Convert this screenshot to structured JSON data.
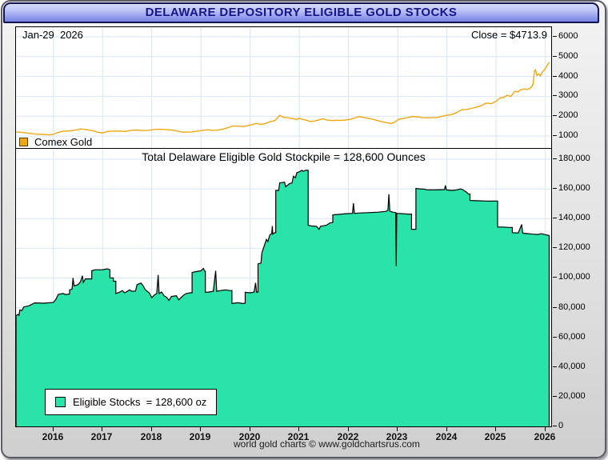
{
  "window": {
    "title": "DELAWARE DEPOSITORY ELIGIBLE GOLD STOCKS"
  },
  "top_chart": {
    "date_label": "Jan-29  2026",
    "close_label": "Close = $4713.9",
    "legend_label": "Comex Gold",
    "line_color": "#F2A712"
  },
  "bottom_chart": {
    "title": "Total Delaware Eligible Gold Stockpile = 128,600 Ounces",
    "legend_label": "Eligible Stocks  = 128,600 oz",
    "fill_color": "#2AE3A8"
  },
  "footer": {
    "credit": "world gold charts © www.goldchartsrus.com"
  },
  "chart_data": [
    {
      "type": "line",
      "name": "Comex Gold",
      "color": "#F2A712",
      "grid_color": "#d7e6f5",
      "xlim": [
        2015.24,
        2026.12
      ],
      "ylim": [
        400,
        6480
      ],
      "yticks": {
        "values": [
          1000,
          2000,
          3000,
          4000,
          5000,
          6000
        ],
        "labels": [
          "1000",
          "2000",
          "3000",
          "4000",
          "5000",
          "6000"
        ]
      },
      "xticks": {
        "values": [
          2016,
          2017,
          2018,
          2019,
          2020,
          2021,
          2022,
          2023,
          2024,
          2025,
          2026
        ],
        "labels": [
          "2016",
          "2017",
          "2018",
          "2019",
          "2020",
          "2021",
          "2022",
          "2023",
          "2024",
          "2025",
          "2026"
        ]
      },
      "annotations": {
        "date": "Jan-29  2026",
        "close": "Close = $4713.9"
      },
      "points": [
        [
          2015.24,
          1210
        ],
        [
          2015.35,
          1190
        ],
        [
          2015.5,
          1140
        ],
        [
          2015.65,
          1095
        ],
        [
          2015.8,
          1085
        ],
        [
          2015.92,
          1062
        ],
        [
          2016.0,
          1090
        ],
        [
          2016.1,
          1190
        ],
        [
          2016.2,
          1242
        ],
        [
          2016.35,
          1262
        ],
        [
          2016.5,
          1322
        ],
        [
          2016.55,
          1358
        ],
        [
          2016.65,
          1335
        ],
        [
          2016.8,
          1268
        ],
        [
          2016.92,
          1180
        ],
        [
          2017.0,
          1158
        ],
        [
          2017.1,
          1232
        ],
        [
          2017.2,
          1248
        ],
        [
          2017.35,
          1252
        ],
        [
          2017.45,
          1228
        ],
        [
          2017.6,
          1292
        ],
        [
          2017.7,
          1306
        ],
        [
          2017.8,
          1278
        ],
        [
          2017.95,
          1288
        ],
        [
          2018.05,
          1335
        ],
        [
          2018.2,
          1342
        ],
        [
          2018.3,
          1322
        ],
        [
          2018.45,
          1292
        ],
        [
          2018.55,
          1232
        ],
        [
          2018.65,
          1196
        ],
        [
          2018.8,
          1208
        ],
        [
          2018.95,
          1252
        ],
        [
          2019.05,
          1295
        ],
        [
          2019.15,
          1312
        ],
        [
          2019.25,
          1288
        ],
        [
          2019.35,
          1302
        ],
        [
          2019.45,
          1352
        ],
        [
          2019.55,
          1422
        ],
        [
          2019.65,
          1512
        ],
        [
          2019.75,
          1498
        ],
        [
          2019.85,
          1478
        ],
        [
          2019.95,
          1522
        ],
        [
          2020.05,
          1578
        ],
        [
          2020.12,
          1642
        ],
        [
          2020.2,
          1588
        ],
        [
          2020.3,
          1622
        ],
        [
          2020.4,
          1722
        ],
        [
          2020.5,
          1772
        ],
        [
          2020.57,
          1962
        ],
        [
          2020.6,
          2048
        ],
        [
          2020.68,
          1942
        ],
        [
          2020.75,
          1928
        ],
        [
          2020.85,
          1882
        ],
        [
          2020.95,
          1842
        ],
        [
          2021.0,
          1898
        ],
        [
          2021.05,
          1852
        ],
        [
          2021.15,
          1792
        ],
        [
          2021.22,
          1738
        ],
        [
          2021.3,
          1748
        ],
        [
          2021.4,
          1818
        ],
        [
          2021.48,
          1878
        ],
        [
          2021.55,
          1812
        ],
        [
          2021.65,
          1782
        ],
        [
          2021.75,
          1798
        ],
        [
          2021.85,
          1792
        ],
        [
          2021.95,
          1808
        ],
        [
          2022.05,
          1852
        ],
        [
          2022.15,
          1932
        ],
        [
          2022.2,
          1978
        ],
        [
          2022.3,
          1942
        ],
        [
          2022.4,
          1898
        ],
        [
          2022.5,
          1842
        ],
        [
          2022.6,
          1772
        ],
        [
          2022.7,
          1712
        ],
        [
          2022.8,
          1662
        ],
        [
          2022.88,
          1638
        ],
        [
          2022.95,
          1722
        ],
        [
          2023.02,
          1848
        ],
        [
          2023.1,
          1878
        ],
        [
          2023.2,
          1928
        ],
        [
          2023.3,
          1988
        ],
        [
          2023.4,
          1968
        ],
        [
          2023.5,
          1928
        ],
        [
          2023.6,
          1918
        ],
        [
          2023.7,
          1928
        ],
        [
          2023.8,
          1938
        ],
        [
          2023.9,
          1998
        ],
        [
          2024.0,
          2048
        ],
        [
          2024.1,
          2082
        ],
        [
          2024.2,
          2182
        ],
        [
          2024.3,
          2332
        ],
        [
          2024.4,
          2342
        ],
        [
          2024.5,
          2392
        ],
        [
          2024.6,
          2458
        ],
        [
          2024.7,
          2532
        ],
        [
          2024.8,
          2662
        ],
        [
          2024.9,
          2632
        ],
        [
          2025.0,
          2752
        ],
        [
          2025.08,
          2922
        ],
        [
          2025.15,
          2938
        ],
        [
          2025.22,
          3052
        ],
        [
          2025.3,
          2992
        ],
        [
          2025.38,
          3252
        ],
        [
          2025.44,
          3222
        ],
        [
          2025.5,
          3332
        ],
        [
          2025.58,
          3372
        ],
        [
          2025.64,
          3342
        ],
        [
          2025.7,
          3422
        ],
        [
          2025.75,
          3582
        ],
        [
          2025.78,
          4262
        ],
        [
          2025.8,
          4342
        ],
        [
          2025.83,
          4052
        ],
        [
          2025.87,
          4132
        ],
        [
          2025.9,
          4022
        ],
        [
          2025.93,
          4182
        ],
        [
          2025.97,
          4302
        ],
        [
          2026.02,
          4482
        ],
        [
          2026.05,
          4602
        ],
        [
          2026.08,
          4714
        ]
      ]
    },
    {
      "type": "area",
      "name": "Eligible Stocks",
      "color": "#2AE3A8",
      "outline": "#000000",
      "grid_color": "#d7e6f5",
      "title": "Total Delaware Eligible Gold Stockpile = 128,600 Ounces",
      "latest_value_oz": 128600,
      "xlim": [
        2015.24,
        2026.12
      ],
      "ylim": [
        0,
        187000
      ],
      "yticks": {
        "values": [
          0,
          20000,
          40000,
          60000,
          80000,
          100000,
          120000,
          140000,
          160000,
          180000
        ],
        "labels": [
          "0",
          "20,000",
          "40,000",
          "60,000",
          "80,000",
          "100,000",
          "120,000",
          "140,000",
          "160,000",
          "180,000"
        ]
      },
      "xticks": {
        "values": [
          2016,
          2017,
          2018,
          2019,
          2020,
          2021,
          2022,
          2023,
          2024,
          2025,
          2026
        ],
        "labels": [
          "2016",
          "2017",
          "2018",
          "2019",
          "2020",
          "2021",
          "2022",
          "2023",
          "2024",
          "2025",
          "2026"
        ]
      },
      "points": [
        [
          2015.24,
          0
        ],
        [
          2015.24,
          74500
        ],
        [
          2015.28,
          75500
        ],
        [
          2015.3,
          74800
        ],
        [
          2015.32,
          78500
        ],
        [
          2015.36,
          78000
        ],
        [
          2015.4,
          80500
        ],
        [
          2015.5,
          81200
        ],
        [
          2015.62,
          83200
        ],
        [
          2015.8,
          83000
        ],
        [
          2016.0,
          83500
        ],
        [
          2016.05,
          85500
        ],
        [
          2016.1,
          89000
        ],
        [
          2016.2,
          89500
        ],
        [
          2016.25,
          88800
        ],
        [
          2016.33,
          89200
        ],
        [
          2016.33,
          92000
        ],
        [
          2016.38,
          92500
        ],
        [
          2016.4,
          100000
        ],
        [
          2016.42,
          94700
        ],
        [
          2016.5,
          95500
        ],
        [
          2016.55,
          97400
        ],
        [
          2016.59,
          101500
        ],
        [
          2016.61,
          97000
        ],
        [
          2016.65,
          99400
        ],
        [
          2016.78,
          99400
        ],
        [
          2016.78,
          104800
        ],
        [
          2016.85,
          105500
        ],
        [
          2017.0,
          105500
        ],
        [
          2017.05,
          105900
        ],
        [
          2017.1,
          106100
        ],
        [
          2017.15,
          105500
        ],
        [
          2017.15,
          100100
        ],
        [
          2017.22,
          100100
        ],
        [
          2017.22,
          97800
        ],
        [
          2017.27,
          97800
        ],
        [
          2017.27,
          89500
        ],
        [
          2017.35,
          90500
        ],
        [
          2017.4,
          91500
        ],
        [
          2017.45,
          90000
        ],
        [
          2017.55,
          92000
        ],
        [
          2017.6,
          91000
        ],
        [
          2017.67,
          91200
        ],
        [
          2017.7,
          95500
        ],
        [
          2017.78,
          96500
        ],
        [
          2017.82,
          95000
        ],
        [
          2017.87,
          92000
        ],
        [
          2017.95,
          90000
        ],
        [
          2018.0,
          86700
        ],
        [
          2018.05,
          88500
        ],
        [
          2018.1,
          89500
        ],
        [
          2018.13,
          102000
        ],
        [
          2018.15,
          89500
        ],
        [
          2018.2,
          90500
        ],
        [
          2018.25,
          88000
        ],
        [
          2018.3,
          87000
        ],
        [
          2018.35,
          84900
        ],
        [
          2018.4,
          87500
        ],
        [
          2018.5,
          88000
        ],
        [
          2018.55,
          85200
        ],
        [
          2018.6,
          87000
        ],
        [
          2018.65,
          88500
        ],
        [
          2018.7,
          89500
        ],
        [
          2018.78,
          90000
        ],
        [
          2018.82,
          90000
        ],
        [
          2018.82,
          103700
        ],
        [
          2018.9,
          104300
        ],
        [
          2019.0,
          104800
        ],
        [
          2019.05,
          106400
        ],
        [
          2019.08,
          104500
        ],
        [
          2019.09,
          104500
        ],
        [
          2019.09,
          90300
        ],
        [
          2019.15,
          90500
        ],
        [
          2019.25,
          91000
        ],
        [
          2019.3,
          104800
        ],
        [
          2019.32,
          91000
        ],
        [
          2019.4,
          91500
        ],
        [
          2019.5,
          92000
        ],
        [
          2019.58,
          91500
        ],
        [
          2019.63,
          91500
        ],
        [
          2019.63,
          82800
        ],
        [
          2019.75,
          83300
        ],
        [
          2019.85,
          82800
        ],
        [
          2019.9,
          83000
        ],
        [
          2019.9,
          90300
        ],
        [
          2020.0,
          90000
        ],
        [
          2020.08,
          90500
        ],
        [
          2020.11,
          96700
        ],
        [
          2020.13,
          90500
        ],
        [
          2020.16,
          90500
        ],
        [
          2020.16,
          109500
        ],
        [
          2020.22,
          110000
        ],
        [
          2020.24,
          117000
        ],
        [
          2020.28,
          121000
        ],
        [
          2020.33,
          126000
        ],
        [
          2020.36,
          124500
        ],
        [
          2020.4,
          129000
        ],
        [
          2020.44,
          130000
        ],
        [
          2020.45,
          135000
        ],
        [
          2020.46,
          129500
        ],
        [
          2020.5,
          130500
        ],
        [
          2020.52,
          130500
        ],
        [
          2020.52,
          159000
        ],
        [
          2020.58,
          159000
        ],
        [
          2020.6,
          164000
        ],
        [
          2020.7,
          164500
        ],
        [
          2020.72,
          161500
        ],
        [
          2020.8,
          163500
        ],
        [
          2020.85,
          164000
        ],
        [
          2020.88,
          168500
        ],
        [
          2020.92,
          167500
        ],
        [
          2020.95,
          171000
        ],
        [
          2021.0,
          171500
        ],
        [
          2021.05,
          172500
        ],
        [
          2021.08,
          171800
        ],
        [
          2021.12,
          172500
        ],
        [
          2021.18,
          172500
        ],
        [
          2021.18,
          135500
        ],
        [
          2021.25,
          135000
        ],
        [
          2021.35,
          134800
        ],
        [
          2021.4,
          132800
        ],
        [
          2021.43,
          134800
        ],
        [
          2021.55,
          135500
        ],
        [
          2021.62,
          137000
        ],
        [
          2021.68,
          137500
        ],
        [
          2021.68,
          142500
        ],
        [
          2021.8,
          142800
        ],
        [
          2021.95,
          143300
        ],
        [
          2022.08,
          143500
        ],
        [
          2022.1,
          150300
        ],
        [
          2022.12,
          143500
        ],
        [
          2022.25,
          143800
        ],
        [
          2022.4,
          144000
        ],
        [
          2022.6,
          144300
        ],
        [
          2022.75,
          144800
        ],
        [
          2022.8,
          145500
        ],
        [
          2022.82,
          156400
        ],
        [
          2022.84,
          145000
        ],
        [
          2022.9,
          144300
        ],
        [
          2022.96,
          144000
        ],
        [
          2022.97,
          108000
        ],
        [
          2022.98,
          143500
        ],
        [
          2023.1,
          143300
        ],
        [
          2023.2,
          143000
        ],
        [
          2023.28,
          143000
        ],
        [
          2023.28,
          132800
        ],
        [
          2023.37,
          132800
        ],
        [
          2023.37,
          160300
        ],
        [
          2023.45,
          160000
        ],
        [
          2023.55,
          159800
        ],
        [
          2023.6,
          159300
        ],
        [
          2023.75,
          159300
        ],
        [
          2023.95,
          159500
        ],
        [
          2023.97,
          162300
        ],
        [
          2023.99,
          159300
        ],
        [
          2024.1,
          159000
        ],
        [
          2024.2,
          159300
        ],
        [
          2024.28,
          160000
        ],
        [
          2024.32,
          159500
        ],
        [
          2024.4,
          157800
        ],
        [
          2024.44,
          156500
        ],
        [
          2024.47,
          156500
        ],
        [
          2024.47,
          152200
        ],
        [
          2024.6,
          152000
        ],
        [
          2024.8,
          151800
        ],
        [
          2025.0,
          151800
        ],
        [
          2025.03,
          151800
        ],
        [
          2025.03,
          134300
        ],
        [
          2025.15,
          134300
        ],
        [
          2025.25,
          134000
        ],
        [
          2025.33,
          134000
        ],
        [
          2025.33,
          130500
        ],
        [
          2025.45,
          130300
        ],
        [
          2025.52,
          136000
        ],
        [
          2025.54,
          130200
        ],
        [
          2025.65,
          129800
        ],
        [
          2025.75,
          129500
        ],
        [
          2025.85,
          129300
        ],
        [
          2025.92,
          129800
        ],
        [
          2026.0,
          129200
        ],
        [
          2026.08,
          128600
        ],
        [
          2026.08,
          0
        ]
      ]
    }
  ]
}
